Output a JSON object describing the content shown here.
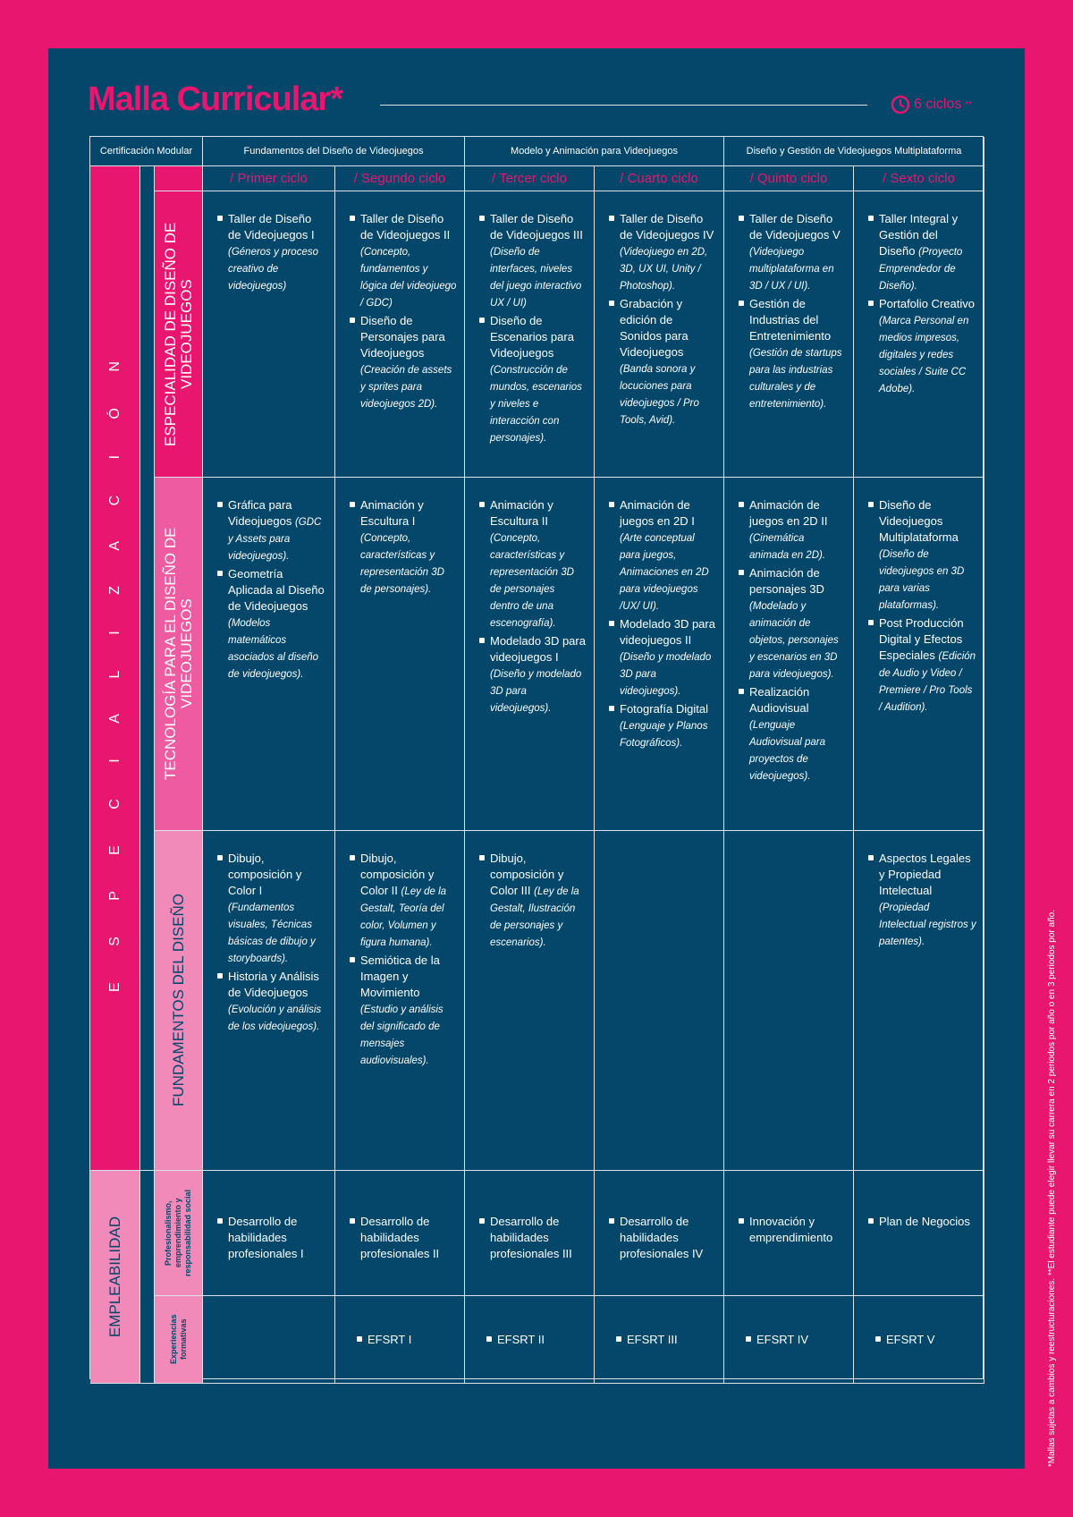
{
  "header": {
    "title": "Malla Curricular*",
    "duration_icon": "clock-icon",
    "duration": "6 ciclos",
    "duration_mark": "**"
  },
  "table": {
    "cert_label": "Certificación Modular",
    "certifications": [
      "Fundamentos del Diseño de Videojuegos",
      "Modelo y Animación para Videojuegos",
      "Diseño y Gestión de Videojuegos Multiplataforma"
    ],
    "cycles": [
      "/ Primer ciclo",
      "/ Segundo ciclo",
      "/ Tercer ciclo",
      "/ Cuarto ciclo",
      "/ Quinto ciclo",
      "/ Sexto ciclo"
    ],
    "groups": {
      "especializacion": "E S P E C I A L I Z A C I Ó N",
      "empleabilidad": "EMPLEABILIDAD"
    },
    "rows": [
      {
        "label": "ESPECIALIDAD DE DISEÑO DE VIDEOJUEGOS",
        "cells": [
          [
            {
              "t": "Taller de Diseño de Videojuegos I",
              "d": "(Géneros y proceso creativo de videojuegos)"
            }
          ],
          [
            {
              "t": "Taller de Diseño de Videojuegos II",
              "d": "(Concepto, fundamentos y lógica del videojuego / GDC)"
            },
            {
              "t": "Diseño de Personajes para Videojuegos",
              "d": "(Creación de assets y sprites para videojuegos 2D)."
            }
          ],
          [
            {
              "t": "Taller de Diseño de Videojuegos III",
              "d": "(Diseño de interfaces, niveles del juego interactivo UX / UI)"
            },
            {
              "t": "Diseño de Escenarios para Videojuegos",
              "d": "(Construcción de mundos, escenarios y niveles e interacción con personajes)."
            }
          ],
          [
            {
              "t": "Taller de Diseño de Videojuegos IV",
              "d": "(Videojuego en 2D, 3D, UX UI, Unity / Photoshop)."
            },
            {
              "t": "Grabación y edición de Sonidos para Videojuegos",
              "d": "(Banda sonora y locuciones para videojuegos / Pro Tools, Avid)."
            }
          ],
          [
            {
              "t": "Taller de Diseño de Videojuegos V",
              "d": "(Videojuego multiplataforma en 3D / UX / UI)."
            },
            {
              "t": "Gestión de Industrias del Entretenimiento",
              "d": "(Gestión de startups para las industrias culturales y de entretenimiento)."
            }
          ],
          [
            {
              "t": "Taller Integral y Gestión del Diseño",
              "d": "(Proyecto Emprendedor de Diseño)."
            },
            {
              "t": "Portafolio Creativo",
              "d": "(Marca Personal en medios impresos, digitales y redes sociales / Suite CC Adobe)."
            }
          ]
        ]
      },
      {
        "label": "TECNOLOGÍA PARA EL DISEÑO DE VIDEOJUEGOS",
        "cells": [
          [
            {
              "t": "Gráfica para Videojuegos",
              "d": "(GDC y Assets para videojuegos)."
            },
            {
              "t": "Geometría Aplicada al Diseño de Videojuegos",
              "d": "(Modelos matemáticos asociados al diseño de videojuegos)."
            }
          ],
          [
            {
              "t": "Animación y Escultura I",
              "d": "(Concepto, características y representación 3D de personajes)."
            }
          ],
          [
            {
              "t": "Animación y Escultura II",
              "d": "(Concepto, características y representación 3D de personajes dentro de una escenografía)."
            },
            {
              "t": "Modelado 3D para videojuegos I",
              "d": "(Diseño y modelado 3D para videojuegos)."
            }
          ],
          [
            {
              "t": "Animación de juegos en 2D I",
              "d": "(Arte conceptual para juegos, Animaciones en 2D para videojuegos /UX/ UI)."
            },
            {
              "t": "Modelado 3D para videojuegos II",
              "d": "(Diseño y modelado 3D para videojuegos)."
            },
            {
              "t": "Fotografía Digital",
              "d": "(Lenguaje y Planos Fotográficos)."
            }
          ],
          [
            {
              "t": "Animación de juegos en 2D II",
              "d": "(Cinemática animada en 2D)."
            },
            {
              "t": "Animación de personajes 3D",
              "d": "(Modelado y animación de objetos, personajes y escenarios en 3D para videojuegos)."
            },
            {
              "t": "Realización Audiovisual",
              "d": "(Lenguaje Audiovisual para proyectos de videojuegos)."
            }
          ],
          [
            {
              "t": "Diseño de Videojuegos Multiplataforma",
              "d": "(Diseño de videojuegos en 3D para varias plataformas)."
            },
            {
              "t": "Post Producción Digital y Efectos Especiales",
              "d": "(Edición de Audio y Video / Premiere / Pro Tools / Audition)."
            }
          ]
        ]
      },
      {
        "label": "FUNDAMENTOS DEL DISEÑO",
        "cells": [
          [
            {
              "t": "Dibujo, composición y Color I",
              "d": "(Fundamentos visuales, Técnicas básicas de dibujo y storyboards)."
            },
            {
              "t": "Historia y Análisis de Videojuegos",
              "d": "(Evolución y análisis de los videojuegos)."
            }
          ],
          [
            {
              "t": "Dibujo, composición y Color II",
              "d": "(Ley de la Gestalt, Teoría del color, Volumen y figura humana)."
            },
            {
              "t": "Semiótica de la Imagen y Movimiento",
              "d": "(Estudio y análisis del significado de mensajes audiovisuales)."
            }
          ],
          [
            {
              "t": "Dibujo, composición y Color III",
              "d": "(Ley de la Gestalt, Ilustración de personajes y escenarios)."
            }
          ],
          [],
          [],
          [
            {
              "t": "Aspectos Legales y Propiedad Intelectual",
              "d": "(Propiedad Intelectual registros y patentes)."
            }
          ]
        ]
      },
      {
        "label": "Profesionalismo, emprendimiento y responsabilidad social",
        "cells": [
          [
            {
              "t": "Desarrollo de habilidades profesionales I",
              "d": ""
            }
          ],
          [
            {
              "t": "Desarrollo de habilidades profesionales II",
              "d": ""
            }
          ],
          [
            {
              "t": "Desarrollo de habilidades profesionales III",
              "d": ""
            }
          ],
          [
            {
              "t": "Desarrollo de habilidades profesionales IV",
              "d": ""
            }
          ],
          [
            {
              "t": "Innovación y emprendimiento",
              "d": ""
            }
          ],
          [
            {
              "t": "Plan de Negocios",
              "d": ""
            }
          ]
        ]
      },
      {
        "label": "Experiencias formativas",
        "cells": [
          [],
          [
            {
              "t": "EFSRT I",
              "d": ""
            }
          ],
          [
            {
              "t": "EFSRT II",
              "d": ""
            }
          ],
          [
            {
              "t": "EFSRT III",
              "d": ""
            }
          ],
          [
            {
              "t": "EFSRT IV",
              "d": ""
            }
          ],
          [
            {
              "t": "EFSRT V",
              "d": ""
            }
          ]
        ]
      }
    ]
  },
  "footnote": "*Mallas sujetas a cambios y reestructuraciones. **El estudiante puede elegir llevar su carrera en 2 periodos por año o en 3 periodos por año.",
  "colors": {
    "background": "#e8166f",
    "panel": "#04476b",
    "accent": "#e8166f",
    "row_pink_1": "#e8166f",
    "row_pink_2": "#ee5ba0",
    "row_pink_3": "#f189b9"
  }
}
